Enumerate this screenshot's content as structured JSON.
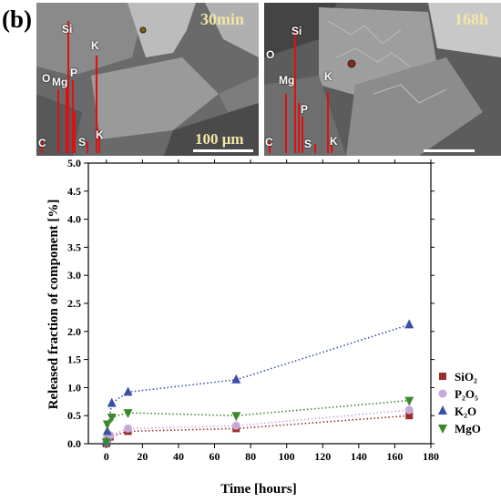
{
  "panel_label": "(b)",
  "sem_images": [
    {
      "time": "30min",
      "scale_bar_label": "100 μm",
      "spectrum_labels": [
        "Si",
        "K",
        "O",
        "Mg",
        "P",
        "C",
        "S",
        "K"
      ]
    },
    {
      "time": "168h",
      "scale_bar_label": "",
      "spectrum_labels": [
        "Si",
        "O",
        "Mg",
        "K",
        "P",
        "C",
        "S",
        "K"
      ]
    }
  ],
  "colors": {
    "SiO2": "#9b2d2d",
    "P2O5": "#c8a8d8",
    "K2O": "#3b4fa8",
    "MgO": "#3a8a2a",
    "spectrum": "#e01010",
    "time_label": "#f3e6a6"
  },
  "chart_data": {
    "type": "scatter",
    "xlabel": "Time [hours]",
    "ylabel": "Released fraction of component [%]",
    "xlim": [
      -10,
      180
    ],
    "ylim": [
      0,
      5.0
    ],
    "x_ticks": [
      "0",
      "20",
      "40",
      "60",
      "80",
      "100",
      "120",
      "140",
      "160",
      "180"
    ],
    "y_ticks": [
      "0.0",
      "0.5",
      "1.0",
      "1.5",
      "2.0",
      "2.5",
      "3.0",
      "3.5",
      "4.0",
      "4.5",
      "5.0"
    ],
    "trend_lines": "dotted",
    "legend_position": "right",
    "series": [
      {
        "name": "SiO₂",
        "marker": "square",
        "color": "#9b2d2d",
        "x": [
          0,
          0.5,
          2,
          12,
          72,
          168
        ],
        "y": [
          0.0,
          0.08,
          0.12,
          0.22,
          0.27,
          0.5
        ]
      },
      {
        "name": "P₂O₅",
        "marker": "circle",
        "color": "#c8a8d8",
        "x": [
          0,
          0.5,
          2,
          12,
          72,
          168
        ],
        "y": [
          0.02,
          0.1,
          0.15,
          0.27,
          0.32,
          0.6
        ]
      },
      {
        "name": "K₂O",
        "marker": "triangle-up",
        "color": "#3b4fa8",
        "x": [
          0,
          0.5,
          3,
          12,
          72,
          168
        ],
        "y": [
          0.03,
          0.22,
          0.72,
          0.92,
          1.14,
          2.12
        ]
      },
      {
        "name": "MgO",
        "marker": "triangle-down",
        "color": "#3a8a2a",
        "x": [
          0,
          0.5,
          3,
          12,
          72,
          168
        ],
        "y": [
          0.03,
          0.35,
          0.47,
          0.55,
          0.5,
          0.77
        ]
      }
    ]
  }
}
